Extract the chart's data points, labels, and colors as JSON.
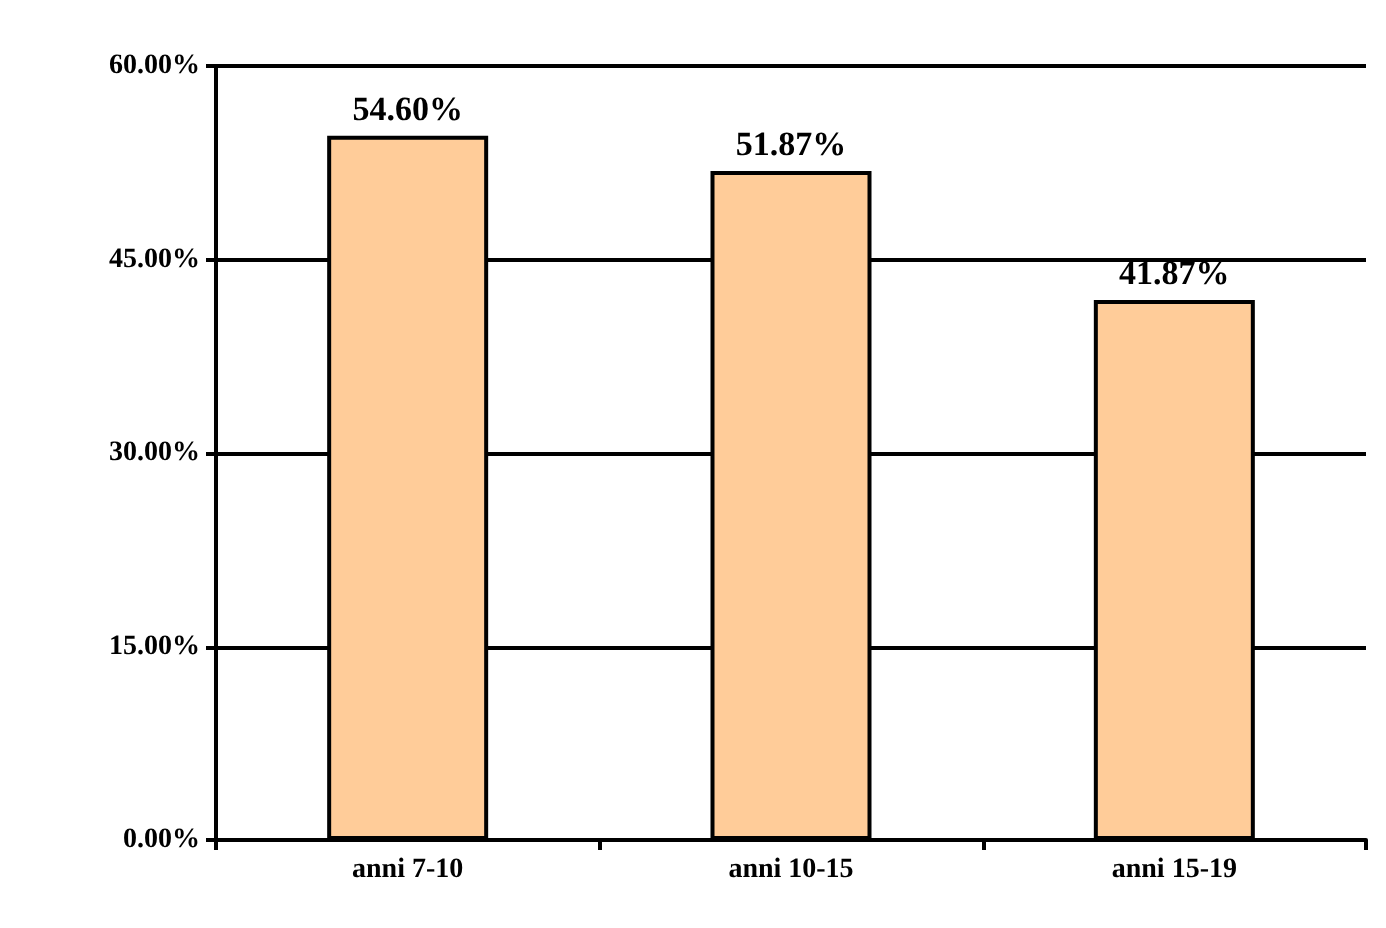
{
  "chart_data": {
    "type": "bar",
    "categories": [
      "anni 7-10",
      "anni 10-15",
      "anni 15-19"
    ],
    "values": [
      54.6,
      51.87,
      41.87
    ],
    "color": "#ffcc99",
    "value_labels": [
      "54.60%",
      "51.87%",
      "41.87%"
    ],
    "ylim": [
      0,
      60
    ],
    "yticks": [
      {
        "value": 0,
        "label": "0.00%"
      },
      {
        "value": 15,
        "label": "15.00%"
      },
      {
        "value": 30,
        "label": "30.00%"
      },
      {
        "value": 45,
        "label": "45.00%"
      },
      {
        "value": 60,
        "label": "60.00%"
      }
    ],
    "grid": "y"
  }
}
